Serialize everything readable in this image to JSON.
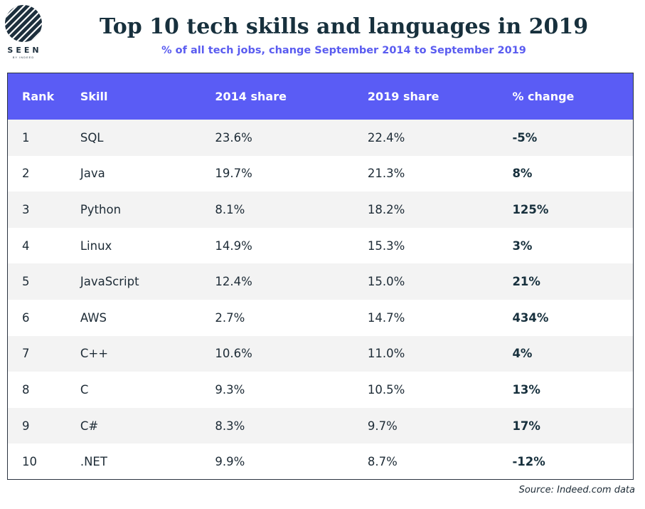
{
  "logo": {
    "word": "SEEN",
    "sub": "BY INDEED"
  },
  "chart_data": {
    "type": "table",
    "title": "Top 10 tech skills and languages in 2019",
    "subtitle": "% of all tech jobs, change September 2014 to September 2019",
    "columns": [
      "Rank",
      "Skill",
      "2014 share",
      "2019 share",
      "% change"
    ],
    "rows": [
      {
        "rank": "1",
        "skill": "SQL",
        "share_2014": "23.6%",
        "share_2019": "22.4%",
        "change": "-5%"
      },
      {
        "rank": "2",
        "skill": "Java",
        "share_2014": "19.7%",
        "share_2019": "21.3%",
        "change": "8%"
      },
      {
        "rank": "3",
        "skill": "Python",
        "share_2014": "8.1%",
        "share_2019": "18.2%",
        "change": "125%"
      },
      {
        "rank": "4",
        "skill": "Linux",
        "share_2014": "14.9%",
        "share_2019": "15.3%",
        "change": "3%"
      },
      {
        "rank": "5",
        "skill": "JavaScript",
        "share_2014": "12.4%",
        "share_2019": "15.0%",
        "change": "21%"
      },
      {
        "rank": "6",
        "skill": "AWS",
        "share_2014": "2.7%",
        "share_2019": "14.7%",
        "change": "434%"
      },
      {
        "rank": "7",
        "skill": "C++",
        "share_2014": "10.6%",
        "share_2019": "11.0%",
        "change": "4%"
      },
      {
        "rank": "8",
        "skill": "C",
        "share_2014": "9.3%",
        "share_2019": "10.5%",
        "change": "13%"
      },
      {
        "rank": "9",
        "skill": "C#",
        "share_2014": "8.3%",
        "share_2019": "9.7%",
        "change": "17%"
      },
      {
        "rank": "10",
        "skill": ".NET",
        "share_2014": "9.9%",
        "share_2019": "8.7%",
        "change": "-12%"
      }
    ],
    "source": "Source: Indeed.com data",
    "colors": {
      "header_bg": "#5a5cf5",
      "subtitle": "#5a5cf0",
      "title": "#17303d",
      "stripe": "#f3f3f3"
    }
  }
}
